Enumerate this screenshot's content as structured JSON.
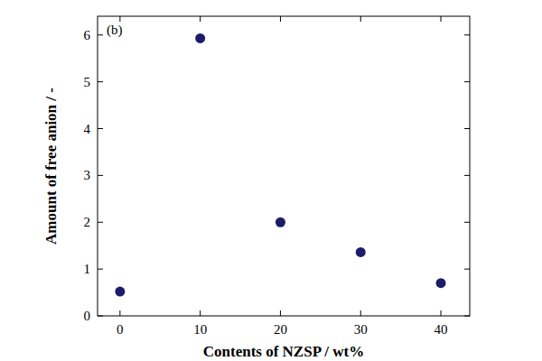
{
  "chart_data": {
    "type": "scatter",
    "annotations": [
      "(b)"
    ],
    "x_label": "Contents of NZSP / wt%",
    "y_label": "Amount of free anion / -",
    "x": [
      0,
      10,
      20,
      30,
      40
    ],
    "values": [
      0.52,
      5.93,
      2.0,
      1.36,
      0.7
    ],
    "color": "#1c1c6b",
    "marker": "circle",
    "xlim": [
      -2.8,
      43.6
    ],
    "xticks": [
      0,
      10,
      20,
      30,
      40
    ],
    "ylim": [
      0,
      6.4
    ],
    "yticks": [
      0,
      1,
      2,
      3,
      4,
      5,
      6
    ],
    "grid": false
  }
}
